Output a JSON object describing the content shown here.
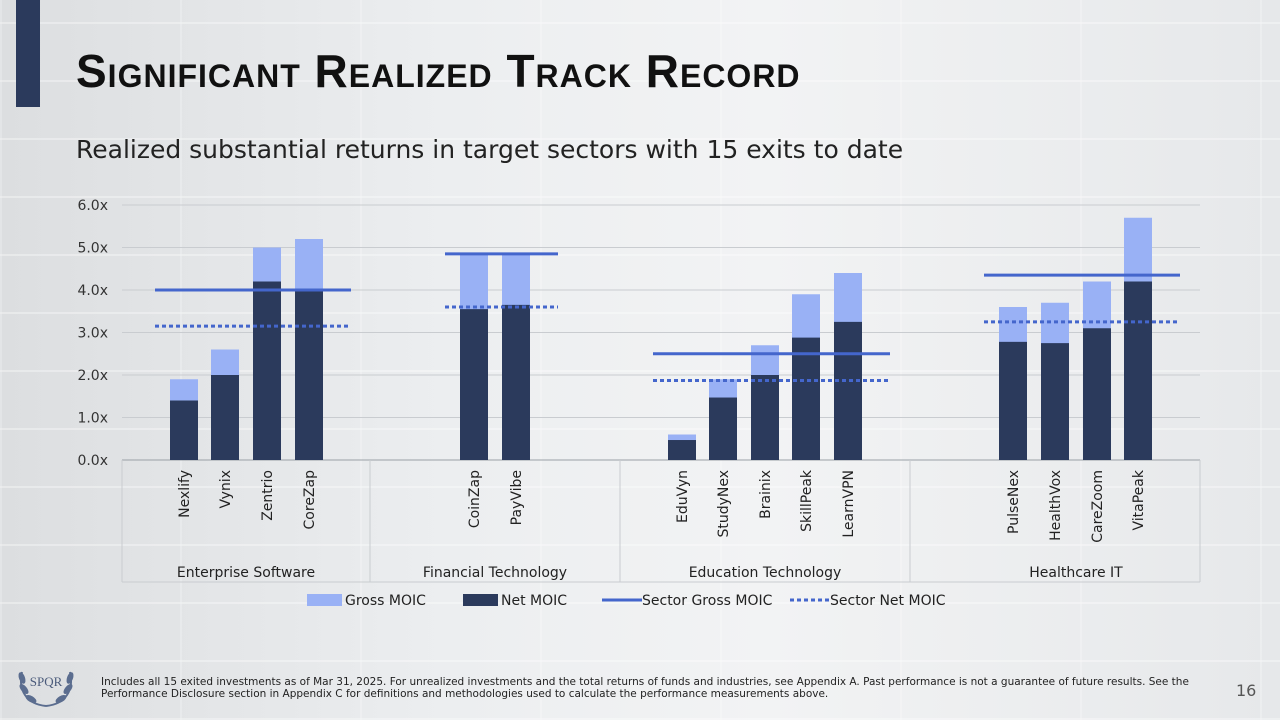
{
  "slide": {
    "title": "Significant Realized Track Record",
    "subtitle": "Realized substantial returns in target sectors with 15 exits to date",
    "footnote": "Includes all 15 exited investments as of Mar 31, 2025. For unrealized investments and the total returns of funds and industries, see Appendix A. Past performance is not a guarantee of future results. See the Performance Disclosure section in Appendix C for definitions and methodologies used to calculate the performance measurements above.",
    "page_number": "16",
    "logo_text": "SPQR"
  },
  "colors": {
    "gross": "#99b1f5",
    "net": "#2b3a5c",
    "sector_line": "#4466cc",
    "accent": "#2b3a5c"
  },
  "chart_data": {
    "type": "bar",
    "stacked_overlay": true,
    "ylim": [
      0,
      6
    ],
    "yticks": [
      "0.0x",
      "1.0x",
      "2.0x",
      "3.0x",
      "4.0x",
      "5.0x",
      "6.0x"
    ],
    "legend": [
      {
        "label": "Gross MOIC",
        "kind": "bar-gross"
      },
      {
        "label": "Net MOIC",
        "kind": "bar-net"
      },
      {
        "label": "Sector Gross MOIC",
        "kind": "line-solid"
      },
      {
        "label": "Sector Net MOIC",
        "kind": "line-dotted"
      }
    ],
    "groups": [
      {
        "name": "Enterprise Software",
        "sector_gross": 4.0,
        "sector_net": 3.15,
        "companies": [
          {
            "name": "Nexlify",
            "gross": 1.9,
            "net": 1.4
          },
          {
            "name": "Vynix",
            "gross": 2.6,
            "net": 2.0
          },
          {
            "name": "Zentrio",
            "gross": 5.0,
            "net": 4.2
          },
          {
            "name": "CoreZap",
            "gross": 5.2,
            "net": 4.0
          }
        ]
      },
      {
        "name": "Financial Technology",
        "sector_gross": 4.85,
        "sector_net": 3.6,
        "companies": [
          {
            "name": "CoinZap",
            "gross": 4.85,
            "net": 3.55
          },
          {
            "name": "PayVibe",
            "gross": 4.85,
            "net": 3.65
          }
        ]
      },
      {
        "name": "Education Technology",
        "sector_gross": 2.5,
        "sector_net": 1.87,
        "companies": [
          {
            "name": "EduVyn",
            "gross": 0.6,
            "net": 0.47
          },
          {
            "name": "StudyNex",
            "gross": 1.9,
            "net": 1.47
          },
          {
            "name": "Brainix",
            "gross": 2.7,
            "net": 2.0
          },
          {
            "name": "SkillPeak",
            "gross": 3.9,
            "net": 2.88
          },
          {
            "name": "LearnVPN",
            "gross": 4.4,
            "net": 3.25
          }
        ]
      },
      {
        "name": "Healthcare IT",
        "sector_gross": 4.35,
        "sector_net": 3.25,
        "companies": [
          {
            "name": "PulseNex",
            "gross": 3.6,
            "net": 2.78
          },
          {
            "name": "HealthVox",
            "gross": 3.7,
            "net": 2.75
          },
          {
            "name": "CareZoom",
            "gross": 4.2,
            "net": 3.1
          },
          {
            "name": "VitaPeak",
            "gross": 5.7,
            "net": 4.2
          }
        ]
      }
    ]
  }
}
